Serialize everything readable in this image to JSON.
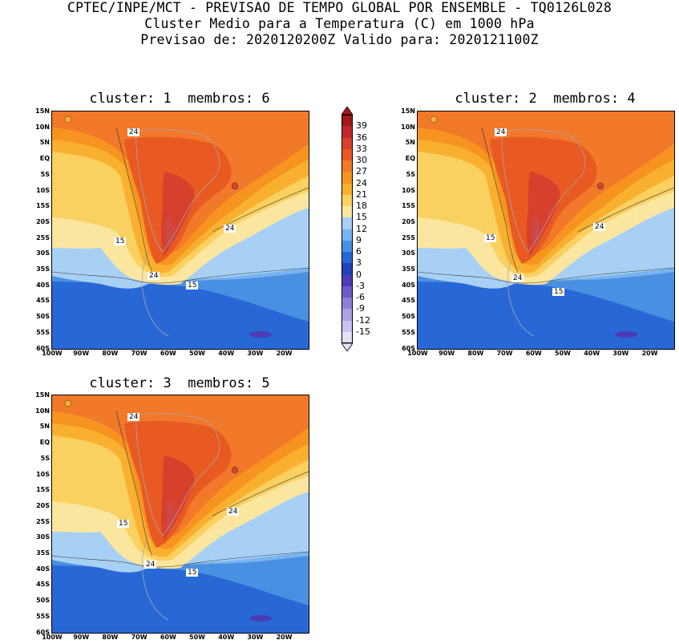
{
  "header": {
    "line1": "CPTEC/INPE/MCT - PREVISAO DE TEMPO GLOBAL POR ENSEMBLE - TQ0126L028",
    "line2": "Cluster Medio para a Temperatura (C) em 1000 hPa",
    "line3": "Previsao de: 2020120200Z   Valido para: 2020121100Z"
  },
  "panels": [
    {
      "title": "cluster: 1  membros: 6"
    },
    {
      "title": "cluster: 2  membros: 4"
    },
    {
      "title": "cluster: 3  membros: 5"
    }
  ],
  "lat_labels": [
    "15N",
    "10N",
    "5N",
    "EQ",
    "5S",
    "10S",
    "15S",
    "20S",
    "25S",
    "30S",
    "35S",
    "40S",
    "45S",
    "50S",
    "55S",
    "60S"
  ],
  "lon_labels": [
    "100W",
    "90W",
    "80W",
    "70W",
    "60W",
    "50W",
    "40W",
    "30W",
    "20W"
  ],
  "contour_labels": {
    "a": "24",
    "b": "15"
  },
  "colorbar": {
    "labels": [
      "39",
      "36",
      "33",
      "30",
      "27",
      "24",
      "21",
      "18",
      "15",
      "12",
      "9",
      "6",
      "3",
      "0",
      "-3",
      "-6",
      "-9",
      "-12",
      "-15"
    ],
    "colors": [
      "#a01818",
      "#c0282a",
      "#d8402e",
      "#e85a22",
      "#f2782a",
      "#f79420",
      "#f9b02e",
      "#fad060",
      "#fbe6a0",
      "#a8d0f4",
      "#78b4ee",
      "#4a90e2",
      "#2868d6",
      "#1e44b8",
      "#4c3cb4",
      "#6c5cc8",
      "#8c80d8",
      "#aca4e2",
      "#cac4ee",
      "#e4e0f6"
    ]
  },
  "palette": {
    "ocean_north": "#f57c24",
    "warm_land": "#ef5a22",
    "hot_core": "#d8402e",
    "orange": "#f79420",
    "yellow": "#fad060",
    "pale": "#fbe6a0",
    "light_blue": "#a8d0f4",
    "mid_blue": "#78b4ee",
    "blue": "#4a90e2",
    "deep_blue": "#2868d6",
    "border_gray": "#a8a8a8"
  }
}
